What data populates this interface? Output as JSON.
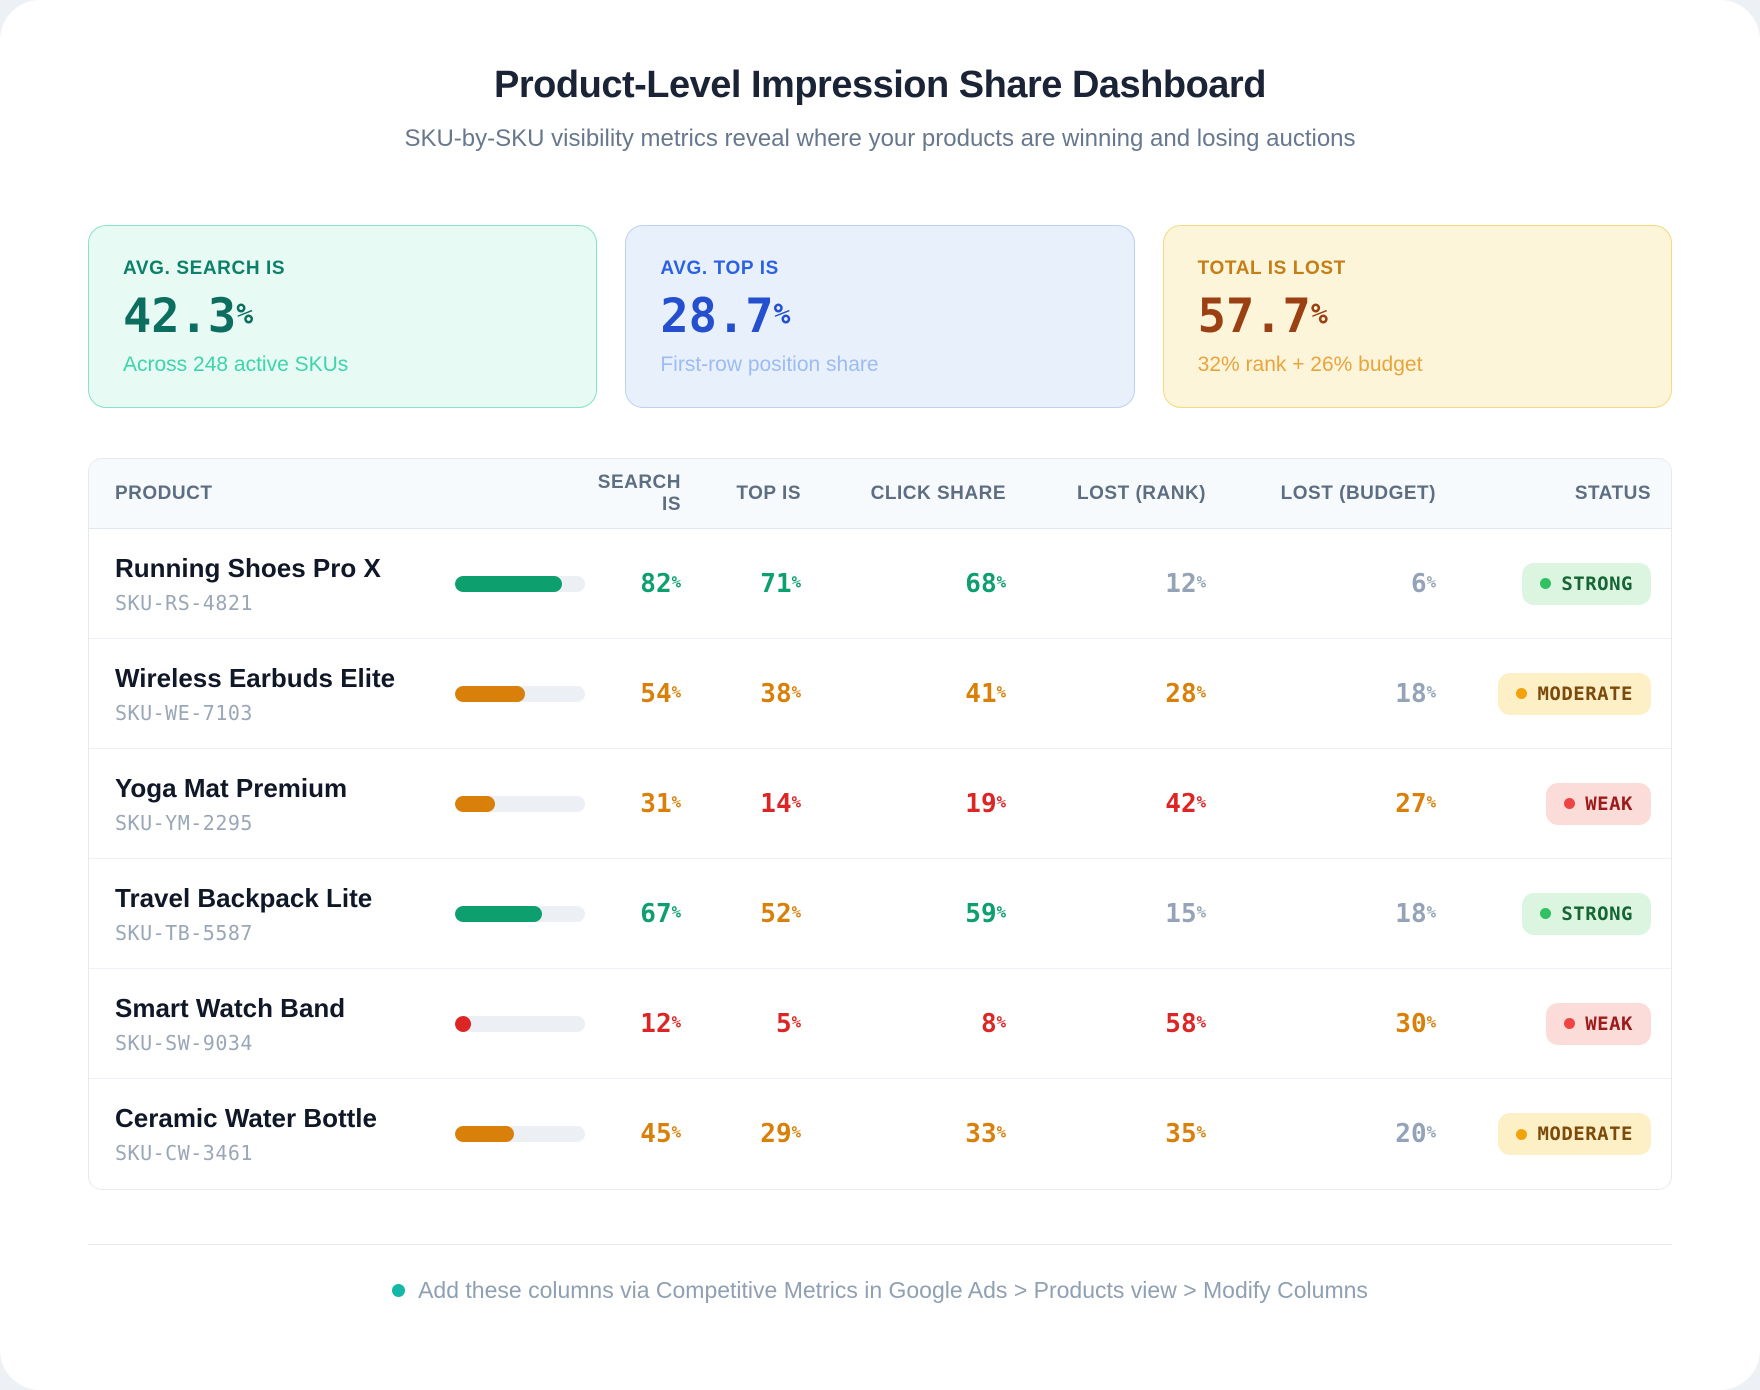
{
  "header": {
    "title": "Product-Level Impression Share Dashboard",
    "subtitle": "SKU-by-SKU visibility metrics reveal where your products are winning and losing auctions"
  },
  "summary_cards": [
    {
      "id": "avg-search-is",
      "label": "AVG. SEARCH IS",
      "value": "42.3%",
      "caption": "Across 248 active SKUs",
      "theme": "teal"
    },
    {
      "id": "avg-top-is",
      "label": "AVG. TOP IS",
      "value": "28.7%",
      "caption": "First-row position share",
      "theme": "blue"
    },
    {
      "id": "total-is-lost",
      "label": "TOTAL IS LOST",
      "value": "57.7%",
      "caption": "32% rank + 26% budget",
      "theme": "amber"
    }
  ],
  "table": {
    "columns": [
      {
        "key": "product",
        "label": "PRODUCT"
      },
      {
        "key": "bar",
        "label": ""
      },
      {
        "key": "search_is",
        "label": "SEARCH IS"
      },
      {
        "key": "top_is",
        "label": "TOP IS"
      },
      {
        "key": "click_share",
        "label": "CLICK SHARE"
      },
      {
        "key": "lost_rank",
        "label": "LOST (RANK)"
      },
      {
        "key": "lost_budget",
        "label": "LOST (BUDGET)"
      },
      {
        "key": "status",
        "label": "STATUS"
      }
    ],
    "rows": [
      {
        "product": "Running Shoes Pro X",
        "sku": "SKU-RS-4821",
        "bar": {
          "percent": 82,
          "tone": "green"
        },
        "search_is": {
          "value": "82%",
          "tone": "green"
        },
        "top_is": {
          "value": "71%",
          "tone": "green"
        },
        "click_share": {
          "value": "68%",
          "tone": "green"
        },
        "lost_rank": {
          "value": "12%",
          "tone": "muted"
        },
        "lost_budget": {
          "value": "6%",
          "tone": "muted"
        },
        "status": {
          "label": "STRONG",
          "tone": "strong"
        }
      },
      {
        "product": "Wireless Earbuds Elite",
        "sku": "SKU-WE-7103",
        "bar": {
          "percent": 54,
          "tone": "orange"
        },
        "search_is": {
          "value": "54%",
          "tone": "orange"
        },
        "top_is": {
          "value": "38%",
          "tone": "orange"
        },
        "click_share": {
          "value": "41%",
          "tone": "orange"
        },
        "lost_rank": {
          "value": "28%",
          "tone": "orange"
        },
        "lost_budget": {
          "value": "18%",
          "tone": "muted"
        },
        "status": {
          "label": "MODERATE",
          "tone": "moderate"
        }
      },
      {
        "product": "Yoga Mat Premium",
        "sku": "SKU-YM-2295",
        "bar": {
          "percent": 31,
          "tone": "orange"
        },
        "search_is": {
          "value": "31%",
          "tone": "orange"
        },
        "top_is": {
          "value": "14%",
          "tone": "red"
        },
        "click_share": {
          "value": "19%",
          "tone": "red"
        },
        "lost_rank": {
          "value": "42%",
          "tone": "red"
        },
        "lost_budget": {
          "value": "27%",
          "tone": "orange"
        },
        "status": {
          "label": "WEAK",
          "tone": "weak"
        }
      },
      {
        "product": "Travel Backpack Lite",
        "sku": "SKU-TB-5587",
        "bar": {
          "percent": 67,
          "tone": "green"
        },
        "search_is": {
          "value": "67%",
          "tone": "green"
        },
        "top_is": {
          "value": "52%",
          "tone": "orange"
        },
        "click_share": {
          "value": "59%",
          "tone": "green"
        },
        "lost_rank": {
          "value": "15%",
          "tone": "muted"
        },
        "lost_budget": {
          "value": "18%",
          "tone": "muted"
        },
        "status": {
          "label": "STRONG",
          "tone": "strong"
        }
      },
      {
        "product": "Smart Watch Band",
        "sku": "SKU-SW-9034",
        "bar": {
          "percent": 12,
          "tone": "red"
        },
        "search_is": {
          "value": "12%",
          "tone": "red"
        },
        "top_is": {
          "value": "5%",
          "tone": "red"
        },
        "click_share": {
          "value": "8%",
          "tone": "red"
        },
        "lost_rank": {
          "value": "58%",
          "tone": "red"
        },
        "lost_budget": {
          "value": "30%",
          "tone": "orange"
        },
        "status": {
          "label": "WEAK",
          "tone": "weak"
        }
      },
      {
        "product": "Ceramic Water Bottle",
        "sku": "SKU-CW-3461",
        "bar": {
          "percent": 45,
          "tone": "orange"
        },
        "search_is": {
          "value": "45%",
          "tone": "orange"
        },
        "top_is": {
          "value": "29%",
          "tone": "orange"
        },
        "click_share": {
          "value": "33%",
          "tone": "orange"
        },
        "lost_rank": {
          "value": "35%",
          "tone": "orange"
        },
        "lost_budget": {
          "value": "20%",
          "tone": "muted"
        },
        "status": {
          "label": "MODERATE",
          "tone": "moderate"
        }
      }
    ]
  },
  "footer": {
    "note": "Add these columns via Competitive Metrics in Google Ads > Products view > Modify Columns"
  },
  "colors": {
    "green": "#0e9f6e",
    "orange": "#d9800b",
    "red": "#dc2626",
    "muted": "#94a3b8",
    "footer_accent": "#14b8a6",
    "card_teal_value": "#0b6e5f",
    "card_blue_value": "#2450d0",
    "card_amber_value": "#9a4012",
    "badge_strong_bg": "#dcf5e1",
    "badge_strong_text": "#166534",
    "badge_strong_dot": "#2fc162",
    "badge_moderate_bg": "#fdf0c6",
    "badge_moderate_text": "#7c4a0a",
    "badge_moderate_dot": "#f2a20c",
    "badge_weak_bg": "#fbdcd9",
    "badge_weak_text": "#9c1c1c",
    "badge_weak_dot": "#ee4444"
  }
}
